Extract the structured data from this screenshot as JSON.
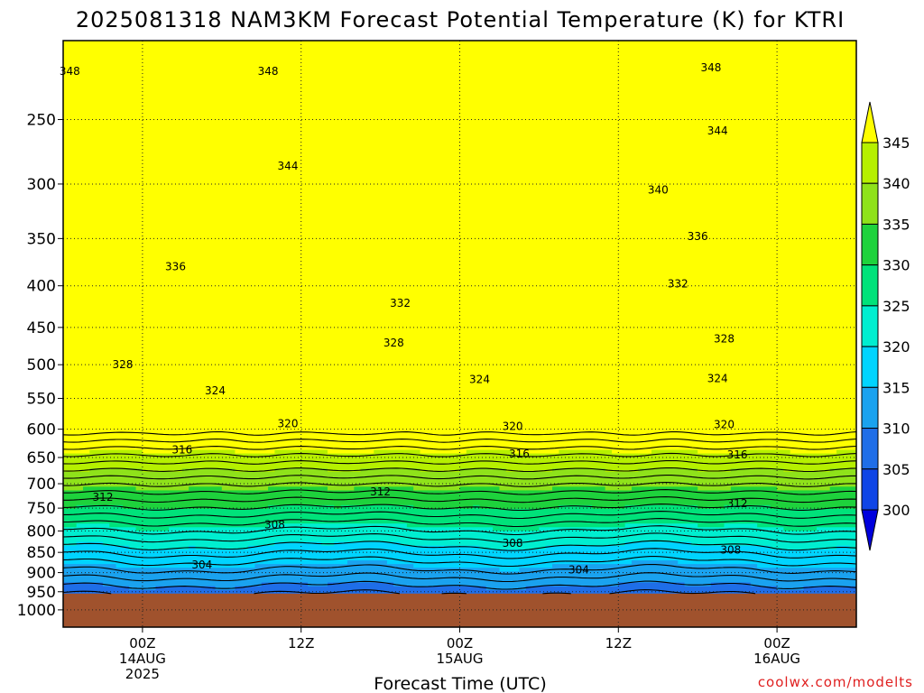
{
  "chart_data": {
    "type": "heatmap",
    "title": "2025081318 NAM3KM Forecast Potential Temperature (K) for KTRI",
    "xlabel": "Forecast Time (UTC)",
    "ylabel": "",
    "credit": "coolwx.com/modelts",
    "y_scale": "log-pressure",
    "y_ticks": [
      250,
      300,
      350,
      400,
      450,
      500,
      550,
      600,
      650,
      700,
      750,
      800,
      850,
      900,
      950,
      1000
    ],
    "x_ticks": [
      {
        "hour": 6,
        "line1": "00Z",
        "line2": "14AUG",
        "line3": "2025"
      },
      {
        "hour": 18,
        "line1": "12Z",
        "line2": "",
        "line3": ""
      },
      {
        "hour": 30,
        "line1": "00Z",
        "line2": "15AUG",
        "line3": ""
      },
      {
        "hour": 42,
        "line1": "12Z",
        "line2": "",
        "line3": ""
      },
      {
        "hour": 54,
        "line1": "00Z",
        "line2": "16AUG",
        "line3": ""
      }
    ],
    "x_range_hours": [
      0,
      60
    ],
    "y_range_hpa": [
      200,
      1050
    ],
    "surface_pressure_hpa": 955,
    "colorbar": {
      "levels": [
        300,
        305,
        310,
        315,
        320,
        325,
        330,
        335,
        340,
        345
      ],
      "colors": [
        "#0000dd",
        "#0f45e6",
        "#1f6ee8",
        "#1aa2ef",
        "#00d4ff",
        "#00eed0",
        "#00e27a",
        "#1ed23c",
        "#8fe21a",
        "#b6f000",
        "#ffff00"
      ],
      "labels": [
        "300",
        "305",
        "310",
        "315",
        "320",
        "325",
        "330",
        "335",
        "340",
        "345"
      ]
    },
    "contour_labels": [
      {
        "text": "348",
        "hour": 0.5,
        "p": 218
      },
      {
        "text": "348",
        "hour": 15.5,
        "p": 218
      },
      {
        "text": "348",
        "hour": 49,
        "p": 216
      },
      {
        "text": "344",
        "hour": 17,
        "p": 285
      },
      {
        "text": "344",
        "hour": 49.5,
        "p": 258
      },
      {
        "text": "340",
        "hour": 45,
        "p": 305
      },
      {
        "text": "336",
        "hour": 8.5,
        "p": 379
      },
      {
        "text": "336",
        "hour": 48,
        "p": 348
      },
      {
        "text": "332",
        "hour": 25.5,
        "p": 420
      },
      {
        "text": "332",
        "hour": 46.5,
        "p": 398
      },
      {
        "text": "328",
        "hour": 4.5,
        "p": 500
      },
      {
        "text": "328",
        "hour": 25,
        "p": 470
      },
      {
        "text": "328",
        "hour": 50,
        "p": 465
      },
      {
        "text": "324",
        "hour": 11.5,
        "p": 538
      },
      {
        "text": "324",
        "hour": 31.5,
        "p": 521
      },
      {
        "text": "324",
        "hour": 49.5,
        "p": 520
      },
      {
        "text": "320",
        "hour": 17,
        "p": 591
      },
      {
        "text": "320",
        "hour": 34,
        "p": 595
      },
      {
        "text": "320",
        "hour": 50,
        "p": 592
      },
      {
        "text": "316",
        "hour": 9,
        "p": 636
      },
      {
        "text": "316",
        "hour": 34.5,
        "p": 643
      },
      {
        "text": "316",
        "hour": 51,
        "p": 645
      },
      {
        "text": "312",
        "hour": 3,
        "p": 727
      },
      {
        "text": "312",
        "hour": 24,
        "p": 716
      },
      {
        "text": "312",
        "hour": 51,
        "p": 740
      },
      {
        "text": "308",
        "hour": 16,
        "p": 786
      },
      {
        "text": "308",
        "hour": 34,
        "p": 828
      },
      {
        "text": "308",
        "hour": 50.5,
        "p": 844
      },
      {
        "text": "304",
        "hour": 10.5,
        "p": 880
      },
      {
        "text": "304",
        "hour": 39,
        "p": 893
      }
    ]
  }
}
